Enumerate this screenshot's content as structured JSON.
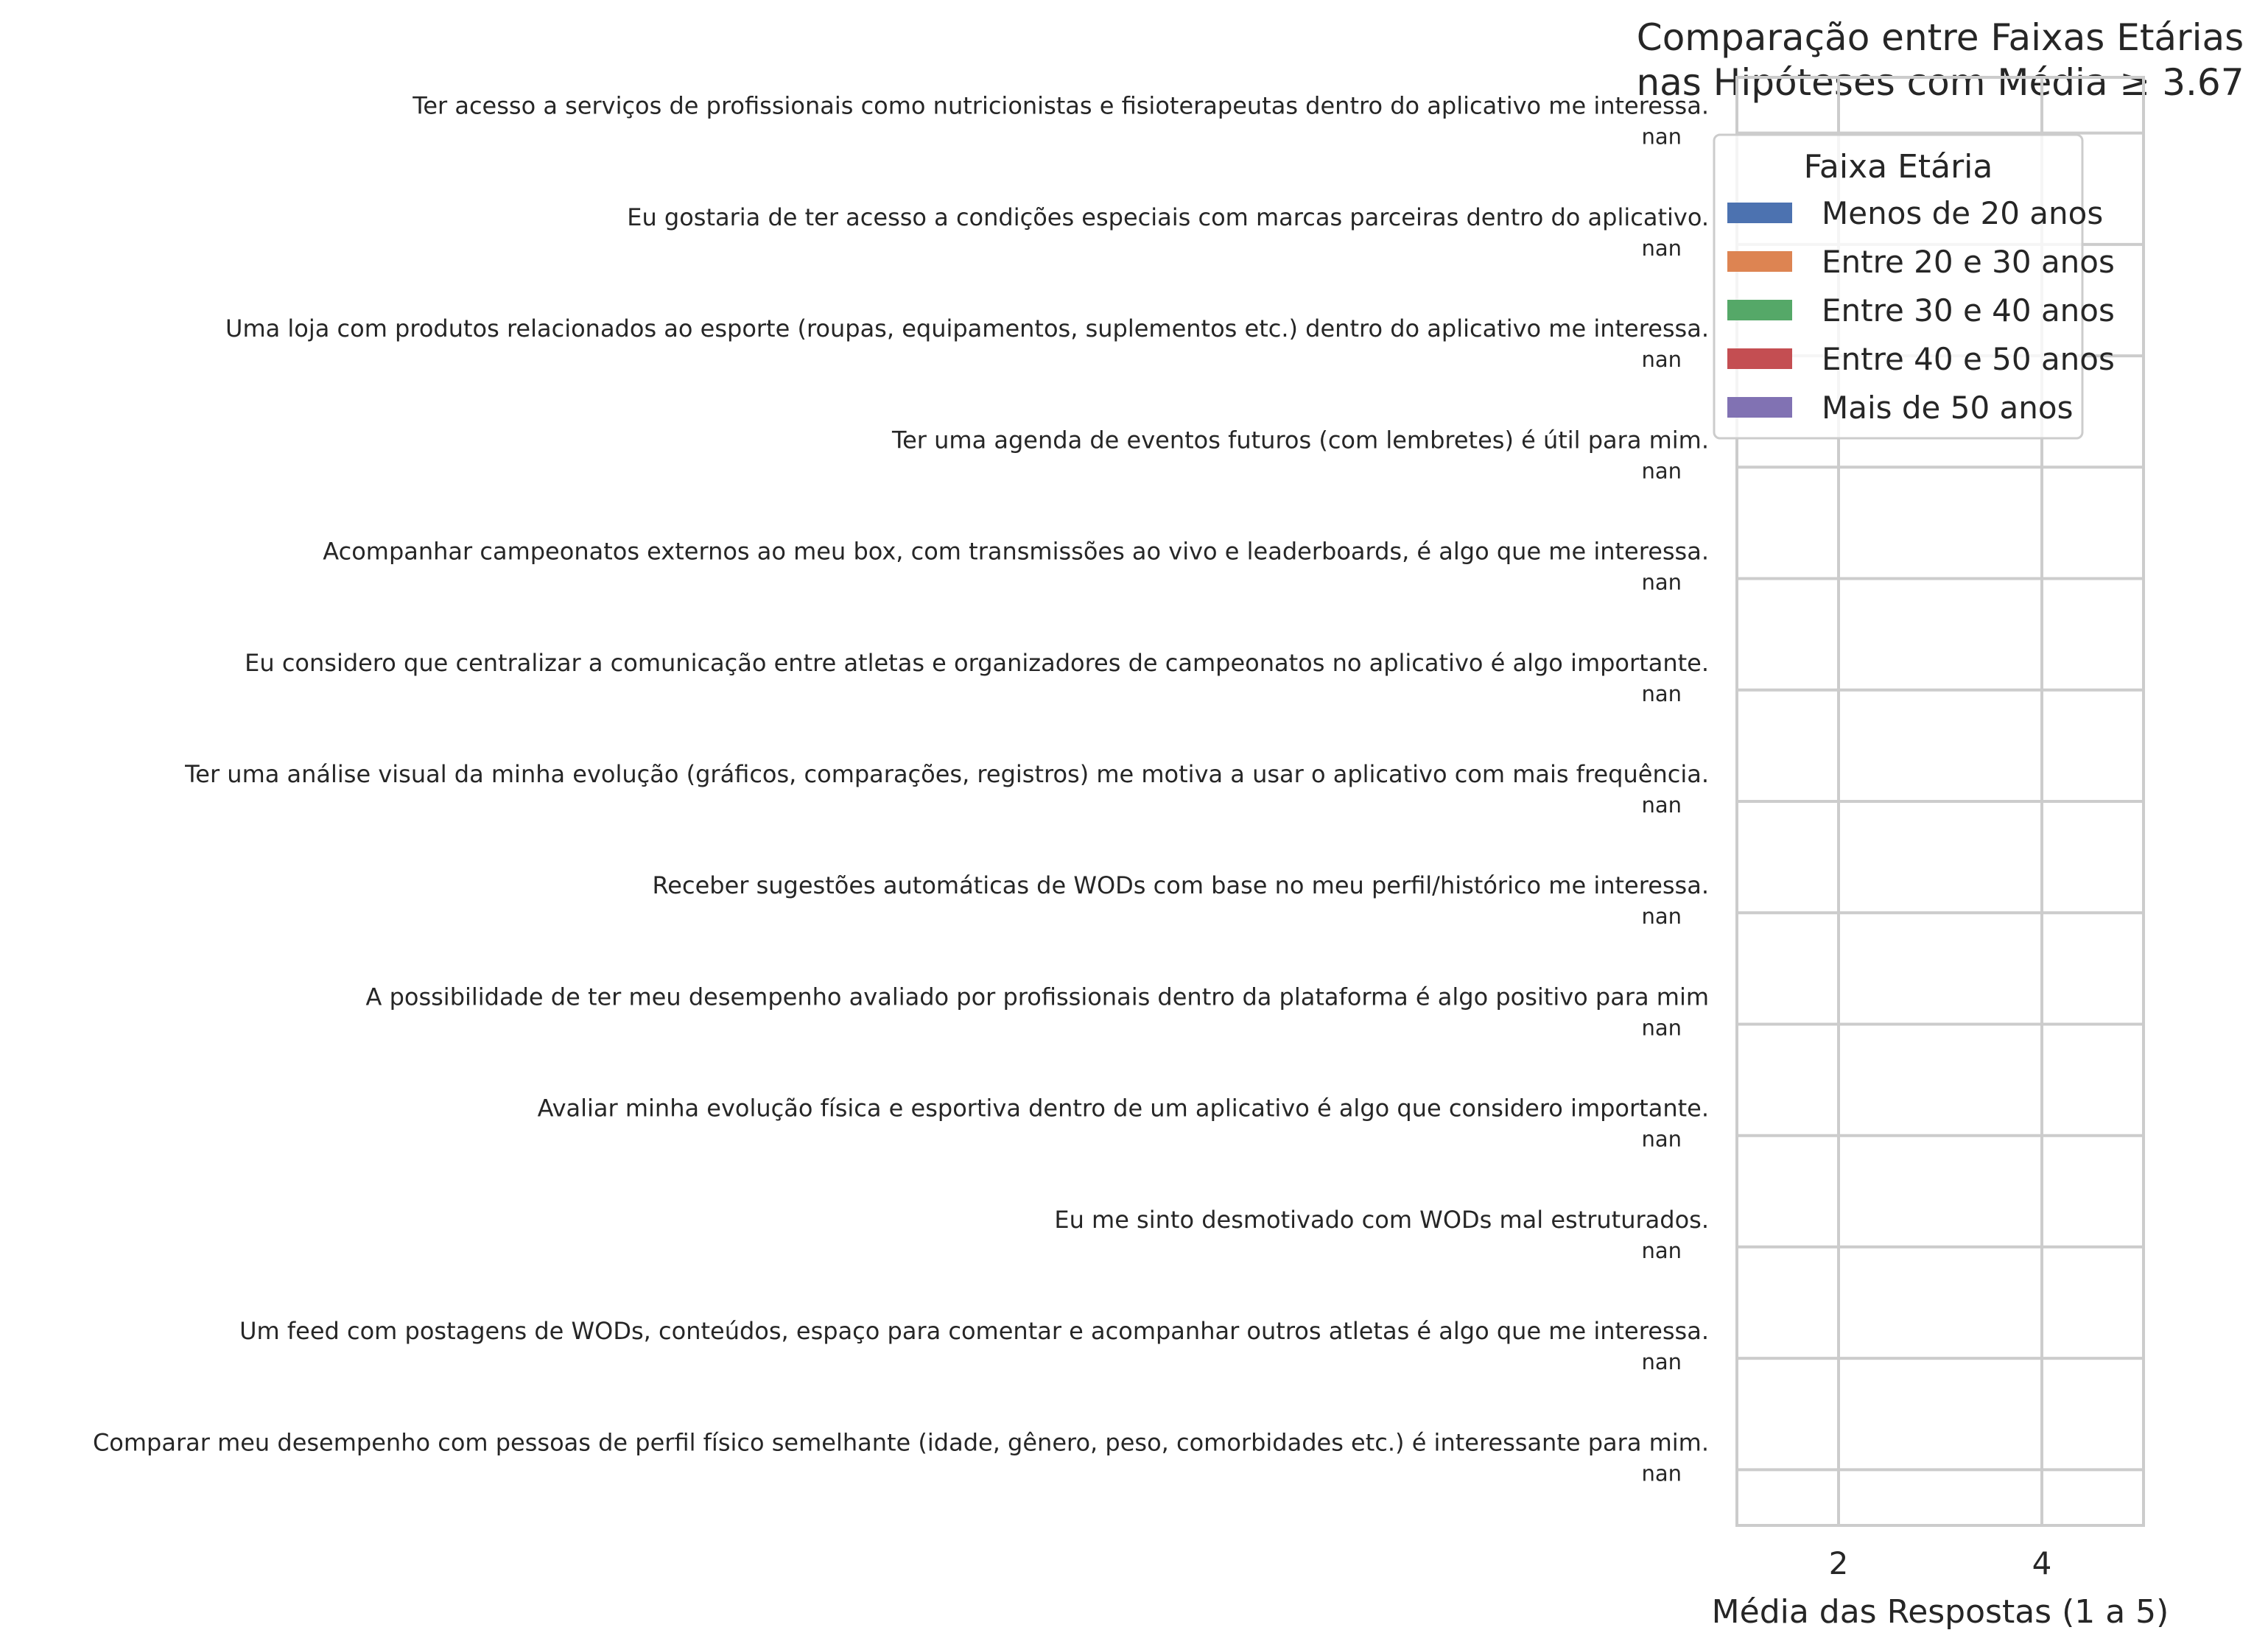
{
  "chart_data": {
    "type": "bar",
    "orientation": "horizontal",
    "title": [
      "Comparação entre Faixas Etárias",
      "nas Hipóteses com Média ≥ 3.67"
    ],
    "xlabel": "Média das Respostas (1 a 5)",
    "ylabel": "",
    "xlim": [
      1,
      5
    ],
    "xticks": [
      2,
      4
    ],
    "grid": true,
    "legend": {
      "title": "Faixa Etária",
      "placement": "top-right"
    },
    "categories": [
      "Ter acesso a serviços de profissionais como nutricionistas e fisioterapeutas dentro do aplicativo me interessa.",
      "Eu gostaria de ter acesso a condições especiais com marcas parceiras dentro do aplicativo.",
      "Uma loja com produtos relacionados ao esporte (roupas, equipamentos, suplementos etc.) dentro do aplicativo me interessa.",
      "Ter uma agenda de eventos futuros (com lembretes) é útil para mim.",
      "Acompanhar campeonatos externos ao meu box, com transmissões ao vivo e leaderboards, é algo que me interessa.",
      "Eu considero que centralizar a comunicação entre atletas e organizadores de campeonatos no aplicativo é algo importante.",
      "Ter uma análise visual da minha evolução (gráficos, comparações, registros) me motiva a usar o aplicativo com mais frequência.",
      "Receber sugestões automáticas de WODs com base no meu perfil/histórico me interessa.",
      "A possibilidade de ter meu desempenho avaliado por profissionais dentro da plataforma é algo positivo para mim",
      "Avaliar minha evolução física e esportiva dentro de um aplicativo é algo que considero importante.",
      "Eu me sinto desmotivado com WODs mal estruturados.",
      "Um feed com postagens de WODs, conteúdos, espaço para comentar e acompanhar outros atletas é algo que me interessa.",
      "Comparar meu desempenho com pessoas de perfil físico semelhante (idade, gênero, peso, comorbidades etc.) é interessante para mim."
    ],
    "value_label": "nan",
    "series": [
      {
        "name": "Menos de 20 anos",
        "color": "#4c72b0",
        "values": [
          null,
          null,
          null,
          null,
          null,
          null,
          null,
          null,
          null,
          null,
          null,
          null,
          null
        ]
      },
      {
        "name": "Entre 20 e 30 anos",
        "color": "#dd8452",
        "values": [
          null,
          null,
          null,
          null,
          null,
          null,
          null,
          null,
          null,
          null,
          null,
          null,
          null
        ]
      },
      {
        "name": "Entre 30 e 40 anos",
        "color": "#55a868",
        "values": [
          null,
          null,
          null,
          null,
          null,
          null,
          null,
          null,
          null,
          null,
          null,
          null,
          null
        ]
      },
      {
        "name": "Entre 40 e 50 anos",
        "color": "#c44e52",
        "values": [
          null,
          null,
          null,
          null,
          null,
          null,
          null,
          null,
          null,
          null,
          null,
          null,
          null
        ]
      },
      {
        "name": "Mais de 50 anos",
        "color": "#8172b3",
        "values": [
          null,
          null,
          null,
          null,
          null,
          null,
          null,
          null,
          null,
          null,
          null,
          null,
          null
        ]
      }
    ]
  },
  "colors": {
    "grid": "#cccccc",
    "spine": "#cccccc",
    "text": "#262626",
    "legend_border": "#cccccc"
  }
}
